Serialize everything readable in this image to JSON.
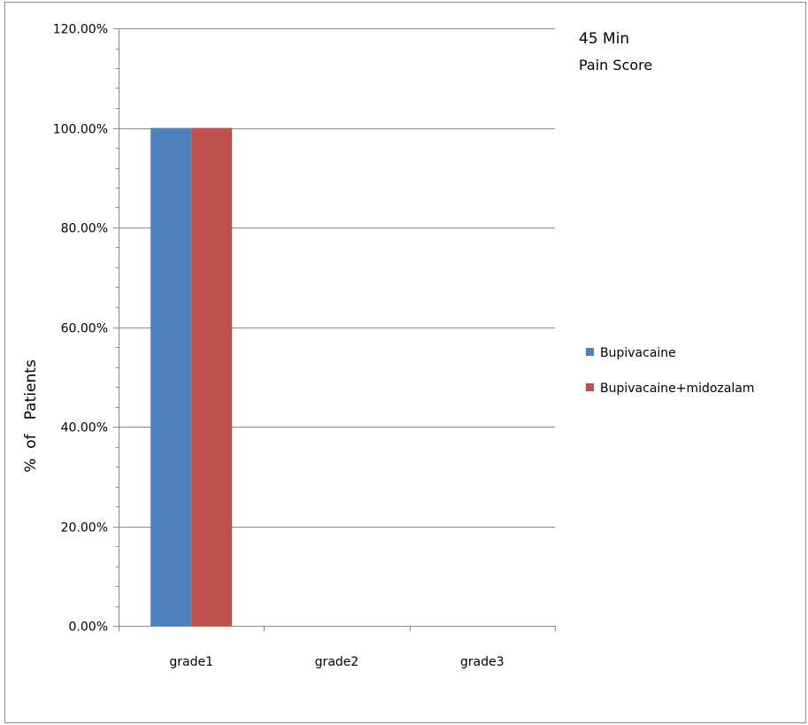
{
  "chart_data": {
    "type": "bar",
    "title_lines": [
      "45 Min",
      "Pain Score"
    ],
    "ylabel": "%  of   Patients",
    "xlabel": "",
    "categories": [
      "grade1",
      "grade2",
      "grade3"
    ],
    "series": [
      {
        "name": "Bupivacaine",
        "color": "#4f81bd",
        "values": [
          1.0,
          0,
          0
        ]
      },
      {
        "name": "Bupivacaine+midozalam",
        "color": "#c0504d",
        "values": [
          1.0,
          0,
          0
        ]
      }
    ],
    "ylim": [
      0,
      1.2
    ],
    "yticks": [
      0,
      0.2,
      0.4,
      0.6,
      0.8,
      1.0,
      1.2
    ],
    "ytick_labels": [
      "0.00%",
      "20.00%",
      "40.00%",
      "60.00%",
      "80.00%",
      "100.00%",
      "120.00%"
    ],
    "grid": true,
    "legend_position": "right"
  }
}
